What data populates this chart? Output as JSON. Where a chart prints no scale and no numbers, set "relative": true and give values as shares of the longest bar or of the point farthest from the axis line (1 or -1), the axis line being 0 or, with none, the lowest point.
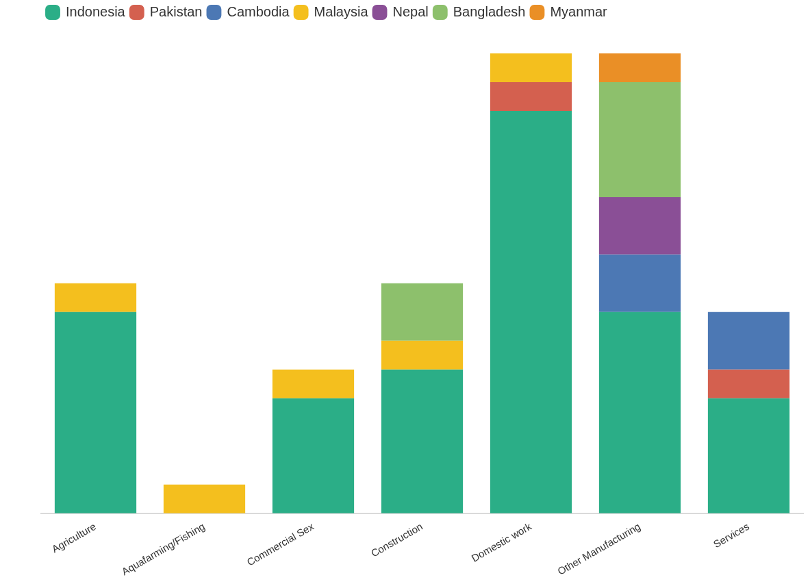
{
  "chart_data": {
    "type": "bar",
    "stacked": true,
    "relative": true,
    "legend": "top left",
    "categories": [
      "Agriculture",
      "Aquafarming/Fishing",
      "Commercial Sex",
      "Construction",
      "Domestic work",
      "Other Manufacturing",
      "Services"
    ],
    "series": [
      {
        "name": "Indonesia",
        "color": "#2bae87",
        "values": [
          0.4375,
          null,
          0.25,
          0.3125,
          0.875,
          0.4375,
          0.25
        ]
      },
      {
        "name": "Pakistan",
        "color": "#d4604f",
        "values": [
          null,
          null,
          null,
          null,
          0.0625,
          null,
          0.0625
        ]
      },
      {
        "name": "Cambodia",
        "color": "#4c78b4",
        "values": [
          null,
          null,
          null,
          null,
          null,
          0.125,
          0.125
        ]
      },
      {
        "name": "Malaysia",
        "color": "#f4bf1e",
        "values": [
          0.0625,
          0.0625,
          0.0625,
          0.0625,
          0.0625,
          null,
          null
        ]
      },
      {
        "name": "Nepal",
        "color": "#8a4f96",
        "values": [
          null,
          null,
          null,
          null,
          null,
          0.125,
          null
        ]
      },
      {
        "name": "Bangladesh",
        "color": "#8dc06c",
        "values": [
          null,
          null,
          null,
          0.125,
          null,
          0.25,
          null
        ]
      },
      {
        "name": "Myanmar",
        "color": "#ea8f26",
        "values": [
          null,
          null,
          null,
          null,
          null,
          0.0625,
          null
        ]
      }
    ]
  }
}
